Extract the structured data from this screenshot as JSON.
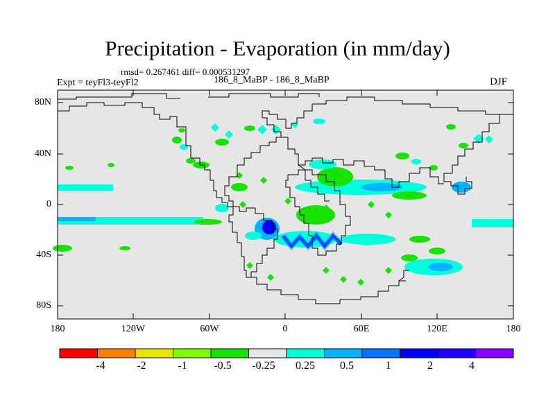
{
  "header": {
    "title": "Precipitation - Evaporation (in mm/day)",
    "stats": "rmsd= 0.267461 diff= 0.000531297",
    "experiment": "Expt = teyFl3-teyFl2",
    "case": "186_8_MaBP - 186_8_MaBP",
    "season": "DJF"
  },
  "axes": {
    "lat_labels": [
      "80N",
      "40N",
      "0",
      "40S",
      "80S"
    ],
    "lon_labels": [
      "180",
      "120W",
      "60W",
      "0",
      "60E",
      "120E",
      "180"
    ]
  },
  "colorbar": {
    "colors": [
      "#ff0000",
      "#ff8000",
      "#e6e600",
      "#80ff00",
      "#17e300",
      "#e6e6e6",
      "#00ffdc",
      "#00b4ff",
      "#0073ff",
      "#0000ff",
      "#1e00ff",
      "#8c00ff"
    ],
    "labels": [
      "-4",
      "-2",
      "-1",
      "-0.5",
      "-0.25",
      "0.25",
      "0.5",
      "1",
      "2",
      "4"
    ]
  },
  "map": {
    "background": "#e6e6e6",
    "coast_color": "#000000"
  }
}
